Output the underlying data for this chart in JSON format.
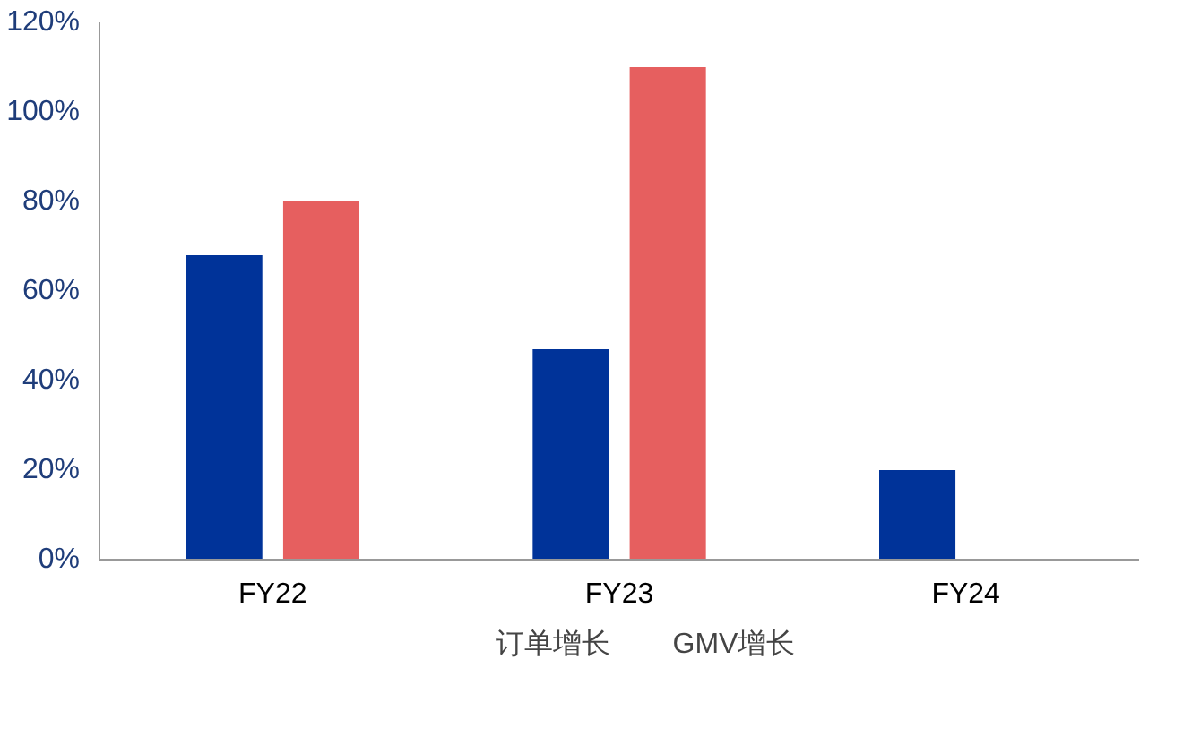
{
  "chart_data": {
    "type": "bar",
    "categories": [
      "FY22",
      "FY23",
      "FY24"
    ],
    "series": [
      {
        "name": "订单增长",
        "color": "#003399",
        "values": [
          68,
          47,
          20
        ]
      },
      {
        "name": "GMV增长",
        "color": "#e65f5f",
        "values": [
          80,
          110,
          null
        ]
      }
    ],
    "ylim": [
      0,
      120
    ],
    "yticks": [
      {
        "value": 0,
        "label": "0%"
      },
      {
        "value": 20,
        "label": "20%"
      },
      {
        "value": 40,
        "label": "40%"
      },
      {
        "value": 60,
        "label": "60%"
      },
      {
        "value": 80,
        "label": "80%"
      },
      {
        "value": 100,
        "label": "100%"
      },
      {
        "value": 120,
        "label": "120%"
      }
    ],
    "grid": false,
    "legend": "bottom"
  }
}
